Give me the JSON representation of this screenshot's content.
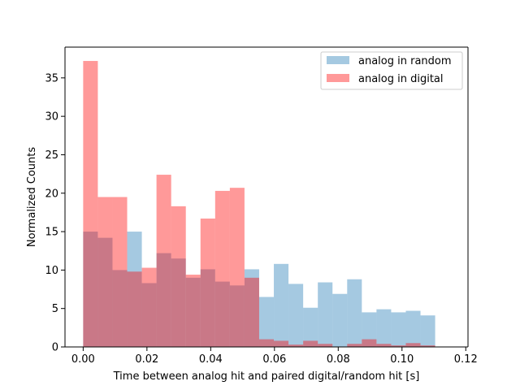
{
  "chart_data": {
    "type": "histogram",
    "title": "",
    "xlabel": "Time between analog hit and paired digital/random hit [s]",
    "ylabel": "Normalized Counts",
    "xlim": [
      -0.0057,
      0.1207
    ],
    "ylim": [
      0,
      39.0
    ],
    "xticks": [
      0.0,
      0.02,
      0.04,
      0.06,
      0.08,
      0.1,
      0.12
    ],
    "xtick_labels": [
      "0.00",
      "0.02",
      "0.04",
      "0.06",
      "0.08",
      "0.10",
      "0.12"
    ],
    "yticks": [
      0,
      5,
      10,
      15,
      20,
      25,
      30,
      35
    ],
    "ytick_labels": [
      "0",
      "5",
      "10",
      "15",
      "20",
      "25",
      "30",
      "35"
    ],
    "grid": false,
    "legend_position": "top-right",
    "bin_edges": [
      0.0,
      0.0046,
      0.0092,
      0.0138,
      0.0184,
      0.023,
      0.0276,
      0.0322,
      0.0368,
      0.0414,
      0.046,
      0.0506,
      0.0552,
      0.0598,
      0.0644,
      0.069,
      0.0736,
      0.0782,
      0.0828,
      0.0874,
      0.092,
      0.0966,
      0.1012,
      0.1058,
      0.1104,
      0.115
    ],
    "series": [
      {
        "name": "analog in random",
        "color": "#1f77b4",
        "alpha": 0.4,
        "values": [
          15.0,
          14.2,
          10.0,
          15.0,
          8.3,
          12.2,
          11.5,
          9.0,
          10.1,
          8.5,
          8.0,
          10.1,
          6.5,
          10.8,
          8.2,
          5.1,
          8.4,
          6.9,
          8.8,
          4.5,
          4.9,
          4.5,
          4.7,
          4.1,
          0
        ]
      },
      {
        "name": "analog in digital",
        "color": "#ff0000",
        "alpha": 0.4,
        "values": [
          37.2,
          19.5,
          19.5,
          9.8,
          10.3,
          22.4,
          18.3,
          9.4,
          16.7,
          20.3,
          20.7,
          9.0,
          1.0,
          0.8,
          0.3,
          0.8,
          0.4,
          0.0,
          0.4,
          1.0,
          0.4,
          0.2,
          0.5,
          0.2,
          0
        ]
      }
    ]
  }
}
